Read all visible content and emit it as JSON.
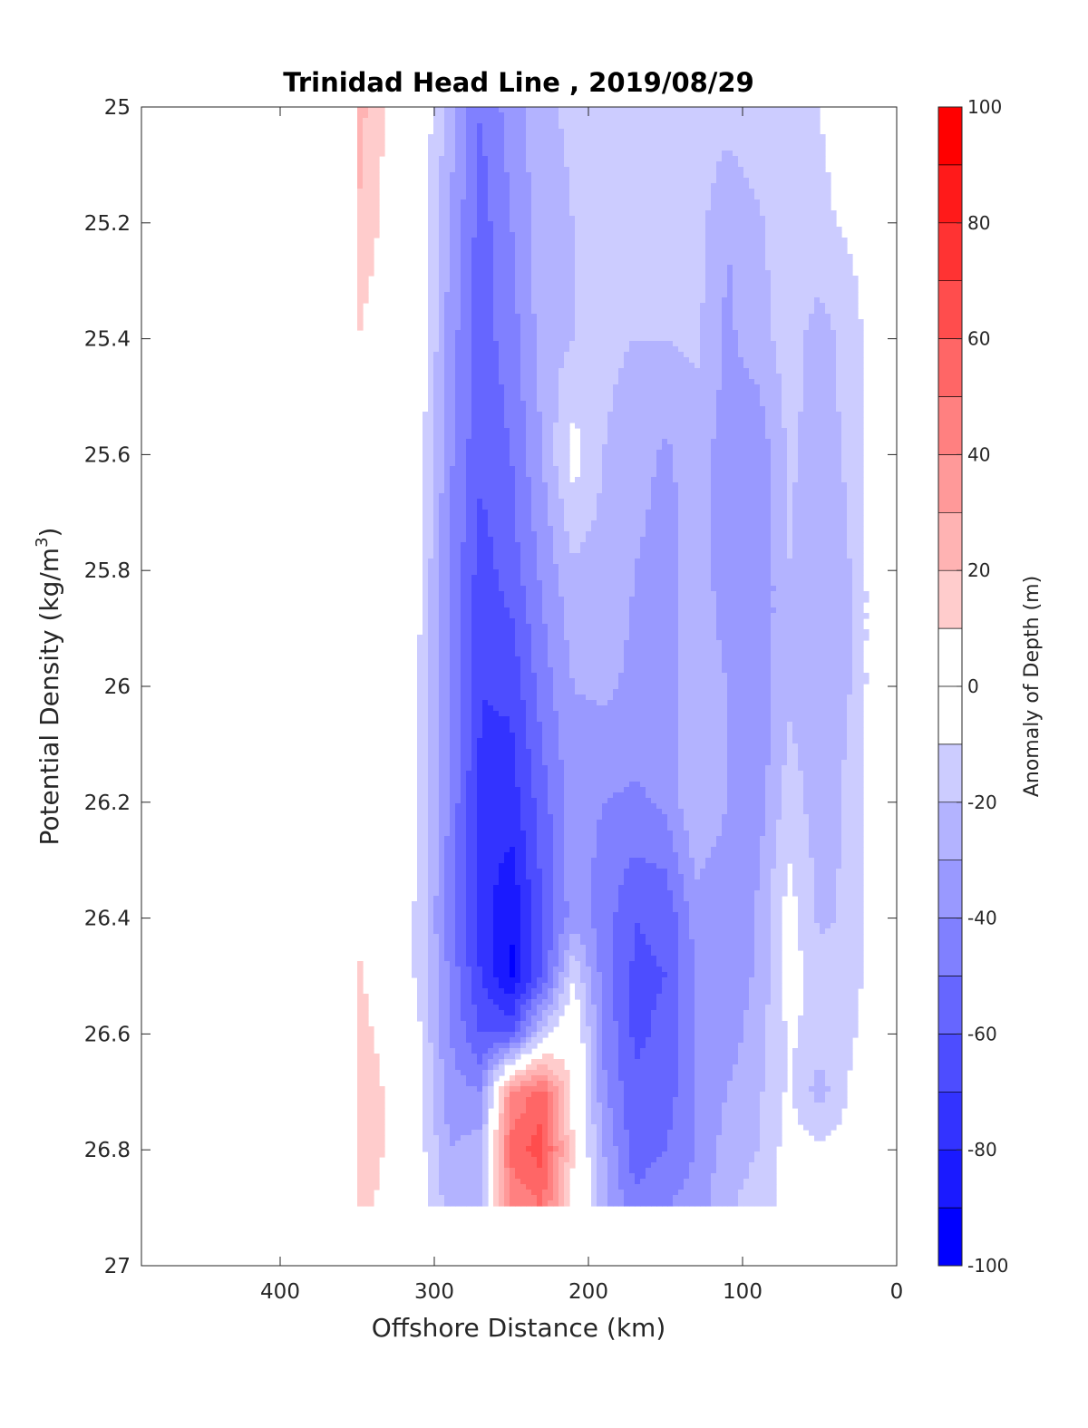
{
  "chart_data": {
    "type": "contour",
    "title": "Trinidad Head Line , 2019/08/29",
    "xlabel": "Offshore Distance (km)",
    "ylabel_main": "Potential Density (kg/m",
    "ylabel_sup": "3",
    "ylabel_tail": ")",
    "xlim": [
      490,
      0
    ],
    "ylim": [
      25,
      27
    ],
    "y_reversed": true,
    "x_reversed": true,
    "x_ticks": [
      400,
      300,
      200,
      100,
      0
    ],
    "y_ticks": [
      25,
      25.2,
      25.4,
      25.6,
      25.8,
      26,
      26.2,
      26.4,
      26.6,
      26.8,
      27
    ],
    "x_tick_labels": [
      "400",
      "300",
      "200",
      "100",
      "0"
    ],
    "y_tick_labels": [
      "25",
      "25.2",
      "25.4",
      "25.6",
      "25.8",
      "26",
      "26.2",
      "26.4",
      "26.6",
      "26.8",
      "27"
    ],
    "colorbar": {
      "label": "Anomaly of Depth (m)",
      "range": [
        -100,
        100
      ],
      "step": 10,
      "ticks": [
        100,
        80,
        60,
        40,
        20,
        0,
        -20,
        -40,
        -60,
        -80,
        -100
      ],
      "tick_labels": [
        "100",
        "80",
        "60",
        "40",
        "20",
        "0",
        "-20",
        "-40",
        "-60",
        "-80",
        "-100"
      ],
      "low_color": "#0000ff",
      "mid_color": "#ffffff",
      "high_color": "#ff0000"
    },
    "grid": false,
    "field_x": [
      350,
      330,
      310,
      290,
      270,
      250,
      230,
      210,
      190,
      170,
      150,
      130,
      110,
      90,
      70,
      50,
      30,
      15
    ],
    "field_y": [
      25.0,
      25.2,
      25.4,
      25.6,
      25.8,
      26.0,
      26.2,
      26.4,
      26.5,
      26.6,
      26.7,
      26.8,
      26.9
    ],
    "field_values": [
      [
        25,
        8,
        0,
        -25,
        -50,
        -35,
        -22,
        -18,
        -15,
        -12,
        -12,
        -12,
        -15,
        -10,
        -10,
        -10,
        -5,
        -2
      ],
      [
        20,
        5,
        0,
        -30,
        -55,
        -40,
        -25,
        -20,
        -15,
        -15,
        -15,
        -15,
        -30,
        -22,
        -12,
        -12,
        -8,
        -4
      ],
      [
        10,
        0,
        0,
        -35,
        -55,
        -45,
        -25,
        -20,
        -18,
        -20,
        -20,
        -18,
        -32,
        -25,
        -15,
        -25,
        -15,
        -5
      ],
      [
        0,
        0,
        -5,
        -38,
        -58,
        -50,
        -30,
        -5,
        -20,
        -25,
        -32,
        -25,
        -35,
        -38,
        -18,
        -25,
        -18,
        -5
      ],
      [
        0,
        0,
        -8,
        -40,
        -65,
        -55,
        -38,
        -22,
        -25,
        -30,
        -35,
        -22,
        -38,
        -40,
        -20,
        -28,
        -20,
        -5
      ],
      [
        0,
        0,
        -10,
        -40,
        -70,
        -68,
        -45,
        -30,
        -28,
        -32,
        -38,
        -20,
        -30,
        -38,
        -22,
        -25,
        -20,
        -5
      ],
      [
        0,
        0,
        -10,
        -42,
        -72,
        -75,
        -55,
        -35,
        -40,
        -42,
        -38,
        -20,
        -30,
        -35,
        -15,
        -25,
        -18,
        -5
      ],
      [
        8,
        0,
        -12,
        -45,
        -75,
        -90,
        -60,
        -35,
        -45,
        -60,
        -58,
        -35,
        -38,
        -28,
        -5,
        -22,
        -18,
        -5
      ],
      [
        12,
        0,
        -12,
        -42,
        -70,
        -92,
        -60,
        -10,
        -45,
        -62,
        -60,
        -40,
        -38,
        -28,
        -5,
        -15,
        -15,
        -5
      ],
      [
        15,
        5,
        -8,
        -40,
        -60,
        -60,
        -15,
        5,
        -42,
        -62,
        -58,
        -40,
        -35,
        -25,
        -8,
        -15,
        -12,
        -2
      ],
      [
        20,
        8,
        -8,
        -35,
        -40,
        40,
        55,
        5,
        -38,
        -58,
        -55,
        -40,
        -30,
        -22,
        -8,
        -25,
        -8,
        0
      ],
      [
        20,
        8,
        -5,
        -30,
        -25,
        55,
        65,
        10,
        -30,
        -55,
        -50,
        -40,
        -25,
        -20,
        -5,
        -8,
        -5,
        0
      ],
      [
        15,
        5,
        -3,
        -25,
        -20,
        40,
        50,
        5,
        -25,
        -48,
        -40,
        -35,
        -22,
        -15,
        -5,
        -5,
        -3,
        0
      ]
    ]
  }
}
